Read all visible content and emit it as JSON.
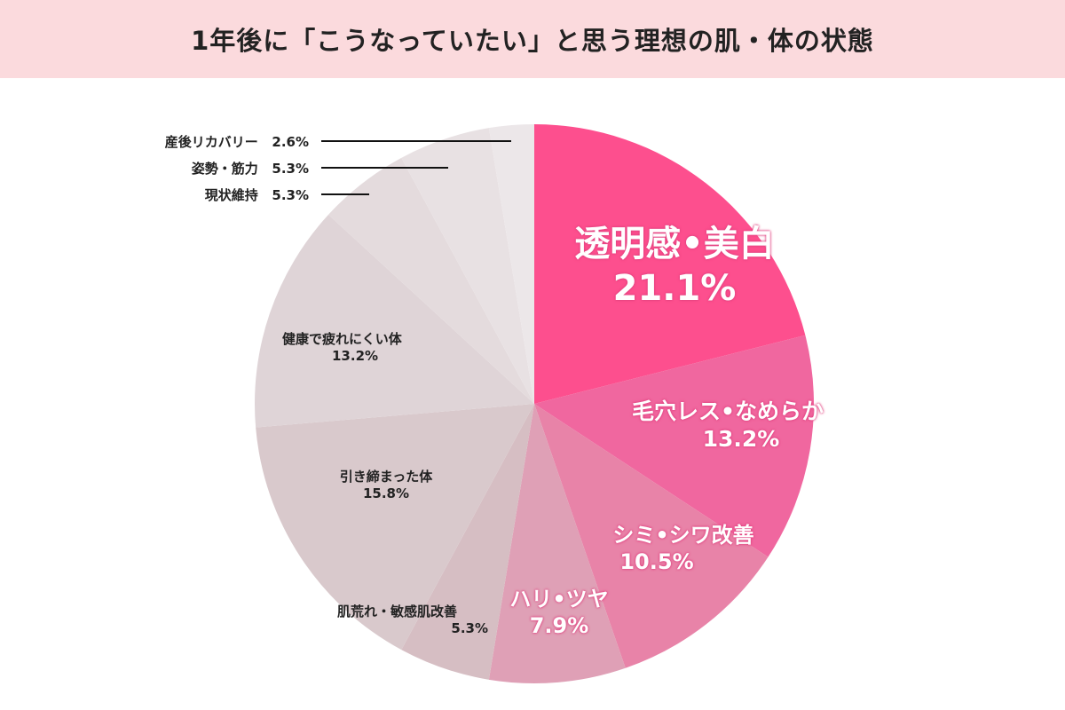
{
  "title": "1年後に「こうなっていたい」と思う理想の肌・体の状態",
  "chart_data": {
    "type": "pie",
    "title": "1年後に「こうなっていたい」と思う理想の肌・体の状態",
    "start": "top",
    "direction": "clockwise",
    "slices": [
      {
        "label": "透明感•美白",
        "value": 21.1,
        "display": "21.1%",
        "color": "#fd4f8e"
      },
      {
        "label": "毛穴レス•なめらか",
        "value": 13.2,
        "display": "13.2%",
        "color": "#f0679f"
      },
      {
        "label": "シミ•シワ改善",
        "value": 10.5,
        "display": "10.5%",
        "color": "#e883a8"
      },
      {
        "label": "ハリ•ツヤ",
        "value": 7.9,
        "display": "7.9%",
        "color": "#dfa0b6"
      },
      {
        "label": "肌荒れ・敏感肌改善",
        "value": 5.3,
        "display": "5.3%",
        "color": "#d6bec3"
      },
      {
        "label": "引き締まった体",
        "value": 15.8,
        "display": "15.8%",
        "color": "#d9c9cc"
      },
      {
        "label": "健康で疲れにくい体",
        "value": 13.2,
        "display": "13.2%",
        "color": "#dfd4d7"
      },
      {
        "label": "現状維持",
        "value": 5.3,
        "display": "5.3%",
        "color": "#e4dbdd"
      },
      {
        "label": "姿勢・筋力",
        "value": 5.3,
        "display": "5.3%",
        "color": "#e8e1e3"
      },
      {
        "label": "産後リカバリー",
        "value": 2.6,
        "display": "2.6%",
        "color": "#ece7e9"
      }
    ]
  }
}
